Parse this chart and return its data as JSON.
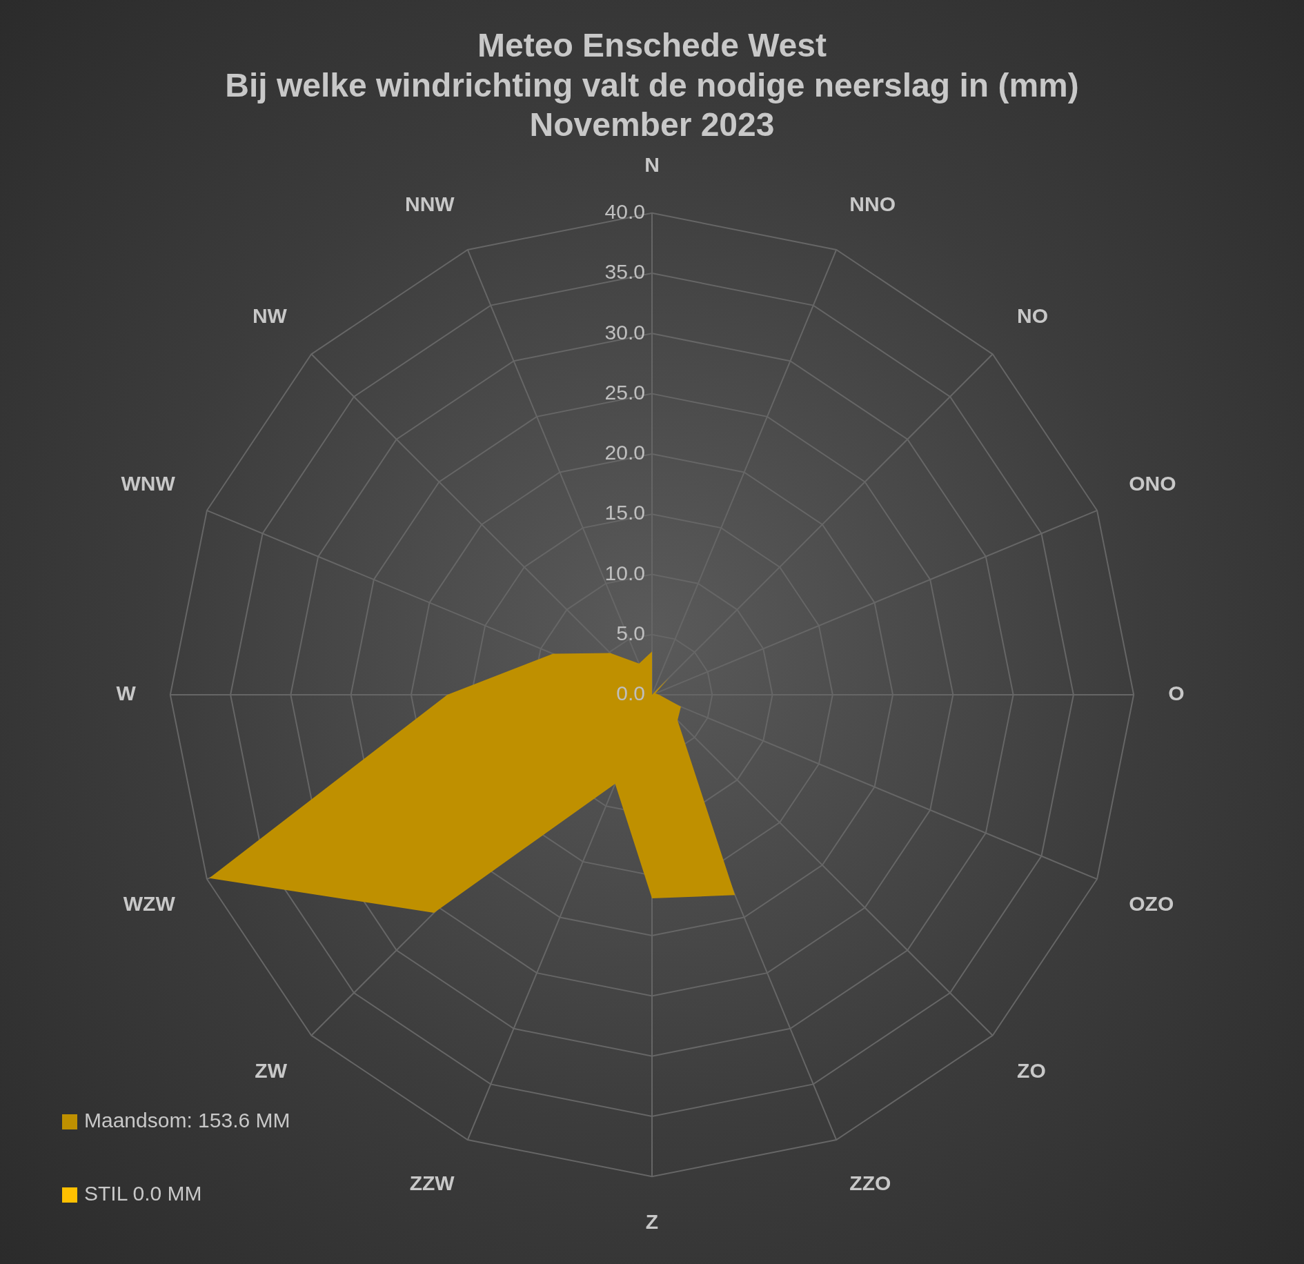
{
  "chart_data": {
    "type": "radar",
    "title": "Meteo Enschede West\nBij welke windrichting valt de nodige neerslag in (mm)\nNovember 2023",
    "categories": [
      "N",
      "NNO",
      "NO",
      "ONO",
      "O",
      "OZO",
      "ZO",
      "ZZO",
      "Z",
      "ZZW",
      "ZW",
      "WZW",
      "W",
      "WNW",
      "NW",
      "NNW"
    ],
    "series": [
      {
        "name": "Maandsom: 153.6 MM",
        "color": "#bf9000",
        "values": [
          3.6,
          0,
          2.0,
          0.3,
          0.6,
          2.6,
          3.0,
          18.0,
          16.9,
          8.0,
          25.6,
          39.8,
          17.0,
          8.9,
          4.9,
          2.8
        ]
      },
      {
        "name": "STIL 0.0 MM",
        "color": "#ffc000",
        "values": [
          null,
          null,
          null,
          null,
          null,
          null,
          null,
          null,
          null,
          null,
          null,
          null,
          null,
          null,
          null,
          null
        ]
      }
    ],
    "ylim": [
      0,
      40
    ],
    "yticks": [
      {
        "value": 0,
        "label": "0.0"
      },
      {
        "value": 5,
        "label": "5.0"
      },
      {
        "value": 10,
        "label": "10.0"
      },
      {
        "value": 15,
        "label": "15.0"
      },
      {
        "value": 20,
        "label": "20.0"
      },
      {
        "value": 25,
        "label": "25.0"
      },
      {
        "value": 30,
        "label": "30.0"
      },
      {
        "value": 35,
        "label": "35.0"
      },
      {
        "value": 40,
        "label": "40.0"
      }
    ],
    "grid": true,
    "legend": "bottom left"
  }
}
